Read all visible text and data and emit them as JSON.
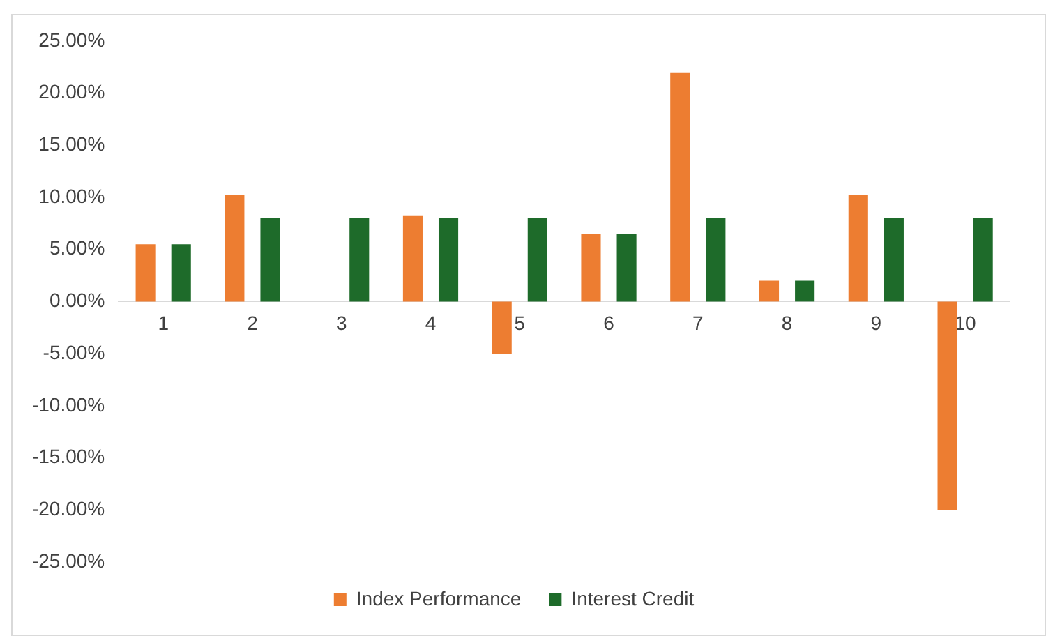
{
  "chart_data": {
    "type": "bar",
    "categories": [
      "1",
      "2",
      "3",
      "4",
      "5",
      "6",
      "7",
      "8",
      "9",
      "10"
    ],
    "series": [
      {
        "name": "Index Performance",
        "color": "#ed7d31",
        "values": [
          5.5,
          10.2,
          0,
          8.2,
          -5,
          6.5,
          22,
          2,
          10.2,
          -20
        ]
      },
      {
        "name": "Interest Credit",
        "color": "#1e6b2a",
        "values": [
          5.5,
          8,
          8,
          8,
          8,
          6.5,
          8,
          2,
          8,
          8
        ]
      }
    ],
    "ylim": [
      -25,
      25
    ],
    "yticks": [
      {
        "value": -25,
        "label": "-25.00%"
      },
      {
        "value": -20,
        "label": "-20.00%"
      },
      {
        "value": -15,
        "label": "-15.00%"
      },
      {
        "value": -10,
        "label": "-10.00%"
      },
      {
        "value": -5,
        "label": "-5.00%"
      },
      {
        "value": 0,
        "label": "0.00%"
      },
      {
        "value": 5,
        "label": "5.00%"
      },
      {
        "value": 10,
        "label": "10.00%"
      },
      {
        "value": 15,
        "label": "15.00%"
      },
      {
        "value": 20,
        "label": "20.00%"
      },
      {
        "value": 25,
        "label": "25.00%"
      }
    ],
    "grid": false,
    "legend": "bottom"
  }
}
